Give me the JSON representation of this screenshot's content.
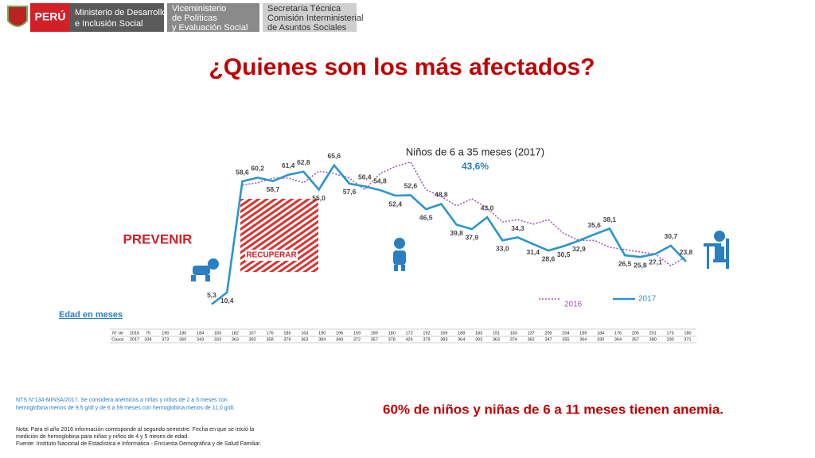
{
  "header": {
    "country": "PERÚ",
    "ministry": [
      "Ministerio de Desarrollo",
      "e Inclusión Social"
    ],
    "vice": [
      "Viceministerio",
      "de Políticas",
      "y Evaluación Social"
    ],
    "secretariat": [
      "Secretaría Técnica",
      "Comisión Interministerial",
      "de Asuntos Sociales"
    ]
  },
  "title": "¿Quienes son los más afectados?",
  "chart_data": {
    "type": "line",
    "title": "Niños de 6 a 35 meses (2017)",
    "subtitle": "43,6%",
    "x_label": "Edad en meses",
    "annotations": [
      "PREVENIR",
      "RECUPERAR"
    ],
    "series": [
      {
        "name": "2016",
        "color": "#9b59c6",
        "dash": true,
        "values": [
          null,
          null,
          57,
          58,
          60,
          60,
          58,
          63,
          62,
          60,
          55,
          62,
          65,
          67,
          55,
          52,
          48,
          51,
          47,
          41,
          42,
          40,
          42,
          36,
          33,
          33,
          30,
          29,
          28,
          27,
          22,
          26
        ]
      },
      {
        "name": "2017",
        "color": "#2a95d0",
        "dash": false,
        "values": [
          5.3,
          10.4,
          58.6,
          60.2,
          58.7,
          61.4,
          62.8,
          55.0,
          65.6,
          57.6,
          56.4,
          54.8,
          52.4,
          52.6,
          46.5,
          48.8,
          39.8,
          37.9,
          43.0,
          33.0,
          34.3,
          31.4,
          28.6,
          30.5,
          32.9,
          35.6,
          38.1,
          26.5,
          25.8,
          27.1,
          30.7,
          23.8
        ],
        "value_labels": [
          "5,3",
          "10,4",
          "58,6",
          "60,2",
          "58,7",
          "61,4",
          "62,8",
          "55,0",
          "65,6",
          "57,6",
          "56,4",
          "54,8",
          "52,4",
          "52,6",
          "46,5",
          "48,8",
          "39,8",
          "37,9",
          "43,0",
          "33,0",
          "34,3",
          "31,4",
          "28,6",
          "30,5",
          "32,9",
          "35,6",
          "38,1",
          "26,5",
          "25,8",
          "27,1",
          "30,7",
          "23,8"
        ]
      }
    ],
    "table": {
      "header": [
        "N° de",
        "Casos"
      ],
      "rows": [
        {
          "year": "2016",
          "counts": [
            75,
            190,
            180,
            184,
            183,
            182,
            167,
            176,
            185,
            163,
            190,
            196,
            159,
            189,
            180,
            172,
            192,
            169,
            188,
            183,
            191,
            183,
            137,
            205,
            204,
            189,
            184,
            176,
            205,
            201,
            173,
            180
          ]
        },
        {
          "year": "2017",
          "counts": [
            334,
            373,
            360,
            343,
            333,
            363,
            392,
            358,
            376,
            363,
            384,
            349,
            372,
            357,
            378,
            426,
            379,
            383,
            364,
            393,
            363,
            374,
            362,
            347,
            355,
            364,
            330,
            364,
            357,
            380,
            330,
            371
          ]
        }
      ]
    }
  },
  "headline": "60% de niños y niñas de 6 a 11 meses tienen anemia.",
  "notes": [
    "NTS N°134-MINSA/2017. Se considera anémicos a niñas y niños de 2 a 5 meses con",
    "hemoglobina menos de 9,5 g/dl y de 6 a 59 meses con hemoglobina menos de 11,0 g/dl."
  ],
  "footnotes": [
    "Nota: Para el año 2016 información corresponde al segundo semestre. Fecha en que se inició la",
    "medición de hemoglobina para niñas y niños de 4 y 5 meses de edad.",
    "Fuente: Instituto Nacional de Estadística e Informática - Encuesta Demográfica y de Salud Familiar."
  ]
}
